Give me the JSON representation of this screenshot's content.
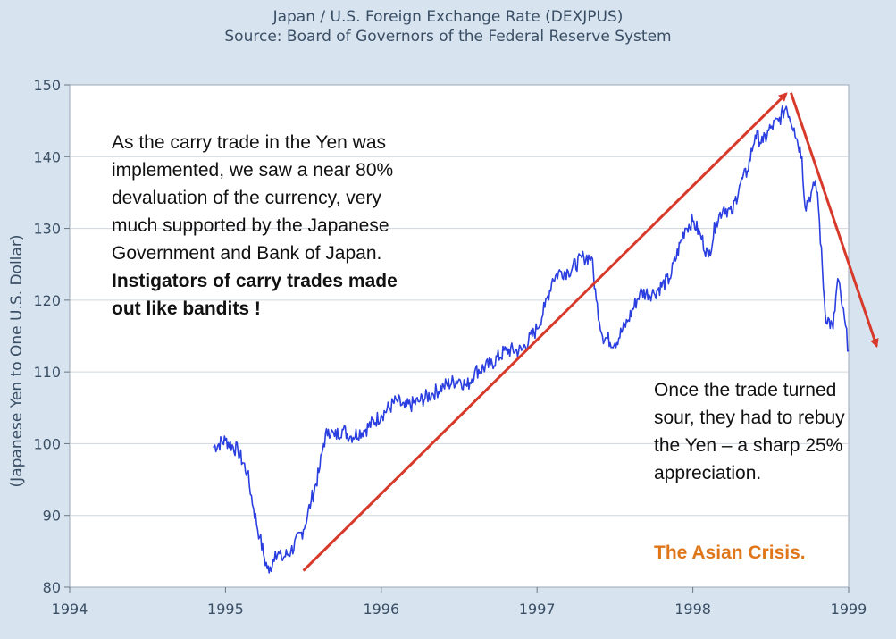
{
  "chart_data": {
    "type": "line",
    "title": "Japan / U.S. Foreign Exchange Rate (DEXJPUS)",
    "subtitle": "Source: Board of Governors of the Federal Reserve System",
    "ylabel": "(Japanese Yen to One U.S. Dollar)",
    "xlabel": "",
    "xlim": [
      1994,
      1999
    ],
    "ylim": [
      80,
      150
    ],
    "x_ticks": [
      "1994",
      "1995",
      "1996",
      "1997",
      "1998",
      "1999"
    ],
    "y_ticks": [
      "80",
      "90",
      "100",
      "110",
      "120",
      "130",
      "140",
      "150"
    ],
    "grid": true,
    "line_color": "#2b3fe0",
    "series": [
      {
        "x": [
          1994.92,
          1995.0,
          1995.08,
          1995.14,
          1995.18,
          1995.22,
          1995.25,
          1995.28,
          1995.32,
          1995.36,
          1995.42,
          1995.5,
          1995.55,
          1995.6,
          1995.63,
          1995.66,
          1995.7,
          1995.75,
          1995.8,
          1995.9,
          1996.0,
          1996.1,
          1996.15,
          1996.25,
          1996.33,
          1996.4,
          1996.5,
          1996.55,
          1996.6,
          1996.7,
          1996.8,
          1996.9,
          1997.0,
          1997.05,
          1997.1,
          1997.15,
          1997.2,
          1997.3,
          1997.35,
          1997.38,
          1997.42,
          1997.5,
          1997.58,
          1997.66,
          1997.75,
          1997.85,
          1997.95,
          1998.0,
          1998.05,
          1998.1,
          1998.15,
          1998.2,
          1998.25,
          1998.3,
          1998.35,
          1998.4,
          1998.45,
          1998.5,
          1998.55,
          1998.6,
          1998.65,
          1998.7,
          1998.72,
          1998.76,
          1998.78,
          1998.8,
          1998.85,
          1998.9,
          1998.93,
          1998.96,
          1999.0
        ],
        "y": [
          99.5,
          100.5,
          99,
          96,
          91,
          87,
          84,
          82,
          85,
          84,
          85,
          88,
          92,
          96,
          100,
          102,
          101,
          102,
          101,
          102,
          104,
          106,
          105,
          106,
          107,
          108,
          109,
          108,
          110,
          111,
          113,
          113,
          116,
          119,
          123,
          124,
          124,
          126,
          126,
          120,
          115,
          114,
          117,
          121,
          121,
          123,
          130,
          131,
          129,
          126,
          131,
          133,
          132,
          136,
          138,
          143,
          142,
          144,
          145,
          147,
          144,
          140,
          133,
          135,
          136,
          135,
          118,
          116,
          123,
          119,
          113
        ]
      }
    ],
    "annotations": {
      "left_text": "As the carry trade in the Yen was implemented, we saw a near 80% devaluation of the currency, very much supported by the Japanese Government and Bank of Japan.",
      "left_bold": "Instigators of carry trades made out  like bandits !",
      "right_text": "Once the trade turned sour, they had to rebuy the Yen – a sharp 25% appreciation.",
      "crisis_text": "The Asian Crisis.",
      "arrow_color": "#d73a2a",
      "up_arrow": {
        "from": [
          1995.5,
          82.3
        ],
        "to": [
          1998.6,
          148.8
        ]
      },
      "down_arrow": {
        "from": [
          1998.63,
          148.9
        ],
        "to": [
          1999.18,
          113.6
        ]
      }
    }
  }
}
